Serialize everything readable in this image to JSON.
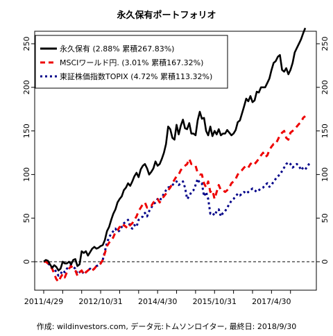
{
  "chart_data": {
    "type": "line",
    "title": "永久保有ポートフォリオ",
    "caption": "作成: wildinvestors.com, データ元:トムソンロイター, 最終日: 2018/9/30",
    "xlabel": "",
    "ylabel": "",
    "x_tick_labels": [
      "2011/4/29",
      "2012/10/31",
      "2014/4/30",
      "2015/10/31",
      "2017/4/30"
    ],
    "y_ticks": [
      0,
      50,
      100,
      150,
      200,
      250
    ],
    "ylim": [
      -30,
      275
    ],
    "grid": false,
    "reference_line": {
      "y": 0,
      "style": "dashed"
    },
    "legend_position": "top-left",
    "series": [
      {
        "name": "永久保有 (2.88% 累積267.83%)",
        "color": "#000000",
        "dash": "solid",
        "values": [
          0,
          2,
          1,
          -3,
          -7,
          -4,
          -6,
          -10,
          -8,
          0,
          -2,
          -2,
          0,
          -3,
          2,
          3,
          -5,
          -3,
          12,
          10,
          12,
          7,
          11,
          15,
          17,
          15,
          16,
          18,
          19,
          25,
          35,
          40,
          48,
          55,
          60,
          68,
          72,
          75,
          82,
          85,
          90,
          87,
          92,
          98,
          102,
          97,
          106,
          110,
          112,
          107,
          100,
          103,
          107,
          115,
          110,
          112,
          118,
          125,
          135,
          155,
          152,
          142,
          140,
          157,
          146,
          156,
          163,
          153,
          152,
          159,
          147,
          147,
          145,
          162,
          172,
          164,
          165,
          150,
          145,
          155,
          144,
          150,
          146,
          152,
          145,
          147,
          147,
          151,
          148,
          145,
          147,
          151,
          160,
          162,
          170,
          178,
          187,
          184,
          190,
          183,
          185,
          195,
          194,
          200,
          200,
          200,
          205,
          210,
          220,
          228,
          230,
          235,
          237,
          220,
          218,
          222,
          215,
          220,
          228,
          240,
          245,
          250,
          255,
          262,
          268
        ]
      },
      {
        "name": "MSCIワールド円. (3.01% 累積167.32%)",
        "color": "#ee0000",
        "dash": "dashed",
        "values": [
          0,
          0,
          -2,
          -5,
          -8,
          -14,
          -20,
          -23,
          -18,
          -14,
          -18,
          -12,
          -8,
          -5,
          -8,
          -10,
          -16,
          -12,
          -10,
          -15,
          -12,
          -10,
          -8,
          -10,
          -8,
          -5,
          -4,
          -2,
          2,
          10,
          18,
          22,
          24,
          28,
          34,
          36,
          40,
          38,
          42,
          40,
          38,
          42,
          44,
          48,
          52,
          58,
          62,
          66,
          68,
          62,
          64,
          64,
          68,
          70,
          72,
          68,
          72,
          75,
          78,
          82,
          85,
          90,
          94,
          98,
          100,
          105,
          108,
          110,
          112,
          118,
          112,
          112,
          110,
          102,
          100,
          100,
          90,
          85,
          92,
          80,
          82,
          72,
          80,
          88,
          82,
          82,
          80,
          82,
          85,
          90,
          92,
          95,
          100,
          103,
          105,
          108,
          110,
          108,
          112,
          114,
          112,
          115,
          118,
          122,
          125,
          120,
          122,
          128,
          132,
          135,
          135,
          140,
          145,
          148,
          150,
          142,
          140,
          148,
          150,
          152,
          155,
          158,
          160,
          165,
          167
        ]
      },
      {
        "name": "東証株価指数TOPIX (4.72% 累積113.32%)",
        "color": "#000088",
        "dash": "dotted",
        "values": [
          0,
          0,
          -2,
          -4,
          -6,
          -8,
          -12,
          -16,
          -14,
          -10,
          -12,
          -8,
          -6,
          -4,
          -6,
          -8,
          -14,
          -12,
          -10,
          -14,
          -12,
          -10,
          -8,
          -10,
          -8,
          -5,
          -4,
          -2,
          2,
          12,
          22,
          28,
          32,
          35,
          38,
          34,
          36,
          40,
          44,
          46,
          48,
          40,
          38,
          42,
          40,
          48,
          50,
          52,
          56,
          52,
          58,
          62,
          66,
          68,
          72,
          70,
          74,
          78,
          82,
          85,
          86,
          88,
          90,
          92,
          88,
          90,
          92,
          85,
          72,
          75,
          80,
          82,
          88,
          95,
          90,
          90,
          75,
          80,
          72,
          55,
          56,
          53,
          58,
          60,
          52,
          56,
          58,
          62,
          66,
          70,
          72,
          75,
          78,
          76,
          78,
          80,
          78,
          80,
          82,
          84,
          82,
          80,
          82,
          84,
          85,
          88,
          90,
          86,
          88,
          92,
          95,
          98,
          100,
          104,
          108,
          112,
          114,
          112,
          108,
          110,
          112,
          110,
          105,
          108,
          106,
          109,
          113
        ]
      }
    ]
  }
}
